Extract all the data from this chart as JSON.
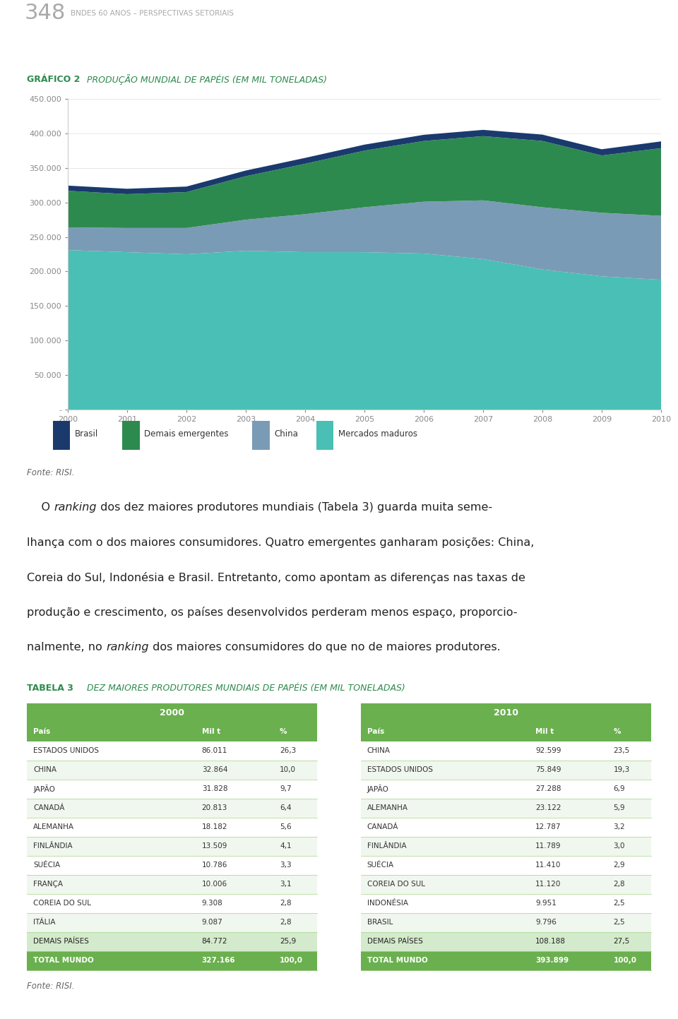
{
  "title_page": "348",
  "title_subtitle": "BNDES 60 ANOS – PERSPECTIVAS SETORIAIS",
  "chart_title_bold": "GRÁFICO 2",
  "chart_title_rest": "PRODUÇÃO MUNDIAL DE PAPÉIS (EM MIL TONELADAS)",
  "years": [
    2000,
    2001,
    2002,
    2003,
    2004,
    2005,
    2006,
    2007,
    2008,
    2009,
    2010
  ],
  "brasil": [
    7500,
    7800,
    8000,
    8200,
    8500,
    8700,
    8900,
    9100,
    9200,
    9000,
    9800
  ],
  "demais_emergentes": [
    53000,
    49000,
    52000,
    63000,
    73000,
    82000,
    88000,
    93000,
    96000,
    83000,
    98000
  ],
  "china": [
    32864,
    35000,
    38000,
    45000,
    55000,
    65000,
    75000,
    85000,
    90000,
    92000,
    92599
  ],
  "mercados_maduros": [
    231000,
    228000,
    225000,
    230000,
    228000,
    228000,
    226000,
    218000,
    203000,
    193000,
    188000
  ],
  "colors": {
    "brasil": "#1a3a6e",
    "demais_emergentes": "#2d8a4e",
    "china": "#7a9bb5",
    "mercados_maduros": "#4abfb5"
  },
  "ylim": [
    0,
    450000
  ],
  "yticks": [
    0,
    50000,
    100000,
    150000,
    200000,
    250000,
    300000,
    350000,
    400000,
    450000
  ],
  "ytick_labels": [
    "-",
    "50.000",
    "100.000",
    "150.000",
    "200.000",
    "250.000",
    "300.000",
    "350.000",
    "400.000",
    "450.000"
  ],
  "legend_labels": [
    "Brasil",
    "Demais emergentes",
    "China",
    "Mercados maduros"
  ],
  "fonte": "Fonte: RISI.",
  "table_title_bold": "TABELA 3",
  "table_title_rest": "DEZ MAIORES PRODUTORES MUNDIAIS DE PAPÉIS (EM MIL TONELADAS)",
  "col_headers": [
    "País",
    "Mil t",
    "%",
    "País",
    "Mil t",
    "%"
  ],
  "table_rows": [
    [
      "ESTADOS UNIDOS",
      "86.011",
      "26,3",
      "CHINA",
      "92.599",
      "23,5"
    ],
    [
      "CHINA",
      "32.864",
      "10,0",
      "ESTADOS UNIDOS",
      "75.849",
      "19,3"
    ],
    [
      "JAPÃO",
      "31.828",
      "9,7",
      "JAPÃO",
      "27.288",
      "6,9"
    ],
    [
      "CANADÁ",
      "20.813",
      "6,4",
      "ALEMANHA",
      "23.122",
      "5,9"
    ],
    [
      "ALEMANHA",
      "18.182",
      "5,6",
      "CANADÁ",
      "12.787",
      "3,2"
    ],
    [
      "FINLÂNDIA",
      "13.509",
      "4,1",
      "FINLÂNDIA",
      "11.789",
      "3,0"
    ],
    [
      "SUÉCIA",
      "10.786",
      "3,3",
      "SUÉCIA",
      "11.410",
      "2,9"
    ],
    [
      "FRANÇA",
      "10.006",
      "3,1",
      "COREIA DO SUL",
      "11.120",
      "2,8"
    ],
    [
      "COREIA DO SUL",
      "9.308",
      "2,8",
      "INDONÉSIA",
      "9.951",
      "2,5"
    ],
    [
      "ITÁLIA",
      "9.087",
      "2,8",
      "BRASIL",
      "9.796",
      "2,5"
    ],
    [
      "DEMAIS PAÍSES",
      "84.772",
      "25,9",
      "DEMAIS PAÍSES",
      "108.188",
      "27,5"
    ],
    [
      "TOTAL MUNDO",
      "327.166",
      "100,0",
      "TOTAL MUNDO",
      "393.899",
      "100,0"
    ]
  ],
  "header_color": "#6ab04e",
  "subheader_color": "#6ab04e",
  "row_colors": [
    "#ffffff",
    "#f0f7ee"
  ],
  "last_row_color": "#6ab04e",
  "penult_row_color": "#d4eacc",
  "row_line_color": "#a8d48a",
  "text_color_dark": "#333333",
  "text_color_white": "#ffffff",
  "page_num_color": "#aaaaaa",
  "subtitle_color": "#aaaaaa",
  "chart_title_color": "#2d8a4e",
  "table_title_color": "#2d8a4e",
  "body_text_color": "#222222",
  "fonte_color": "#666666",
  "background": "#ffffff"
}
